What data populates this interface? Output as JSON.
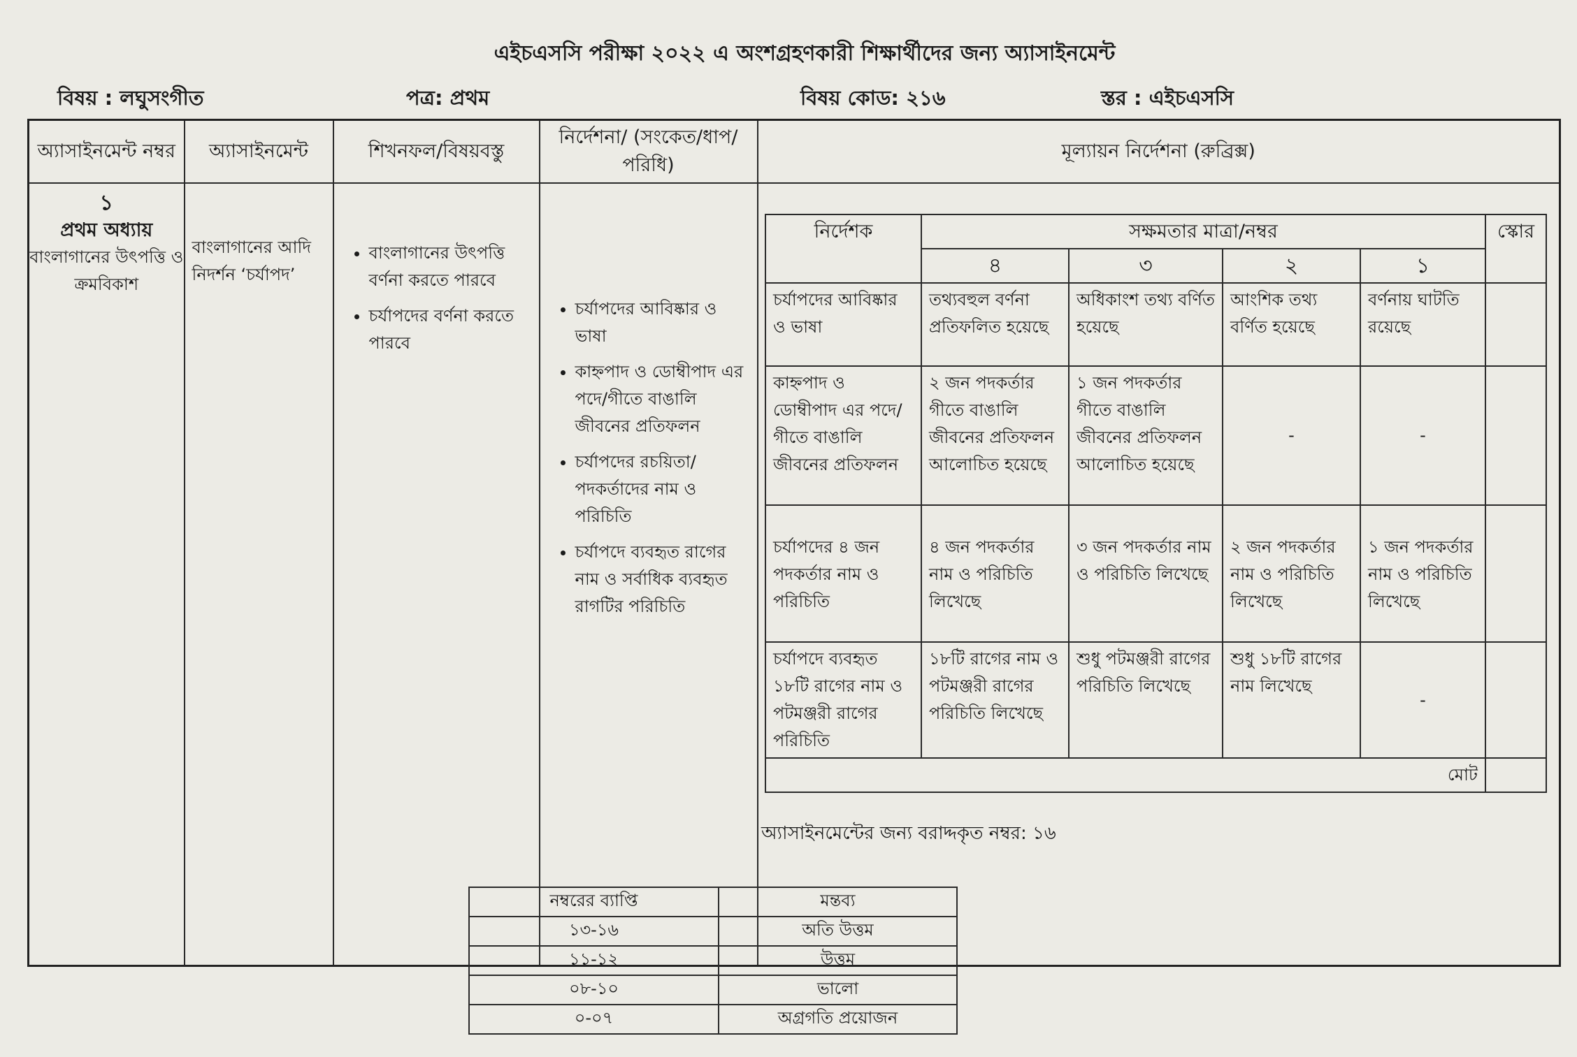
{
  "document": {
    "title": "এইচএসসি পরীক্ষা ২০২২ এ অংশগ্রহণকারী শিক্ষার্থীদের জন্য অ্যাসাইনমেন্ট",
    "subject": "বিষয় : লঘুসংগীত",
    "paper": "পত্র: প্রথম",
    "subject_code": "বিষয় কোড: ২১৬",
    "level": "স্তর : এইচএসসি"
  },
  "main_table": {
    "headers": [
      "অ্যাসাইনমেন্ট নম্বর",
      "অ্যাসাইনমেন্ট",
      "শিখনফল/বিষয়বস্তু",
      "নির্দেশনা/ (সংকেত/ধাপ/পরিধি)",
      "মূল্যায়ন নির্দেশনা (রুব্রিক্স)"
    ],
    "assignment_number": "১",
    "chapter": "প্রথম অধ্যায়",
    "chapter_topic": "বাংলাগানের উৎপত্তি ও ক্রমবিকাশ",
    "assignment": "বাংলাগানের আদি নিদর্শন ‘চর্যাপদ’",
    "learning_outcomes": [
      "বাংলাগানের উৎপত্তি বর্ণনা করতে পারবে",
      "চর্যাপদের বর্ণনা করতে পারবে"
    ],
    "instructions": [
      "চর্যাপদের আবিষ্কার ও ভাষা",
      "কাহ্নপাদ ও ডোম্বীপাদ এর পদে/গীতে বাঙালি জীবনের প্রতিফলন",
      "চর্যাপদের রচয়িতা/পদকর্তাদের নাম ও পরিচিতি",
      "চর্যাপদে ব্যবহৃত রাগের নাম ও সর্বাধিক ব্যবহৃত রাগটির পরিচিতি"
    ]
  },
  "rubric": {
    "indicator_header": "নির্দেশক",
    "competency_header": "সক্ষমতার মাত্রা/নম্বর",
    "score_header": "স্কোর",
    "levels": [
      "৪",
      "৩",
      "২",
      "১"
    ],
    "rows": [
      {
        "indicator": "চর্যাপদের আবিষ্কার ও ভাষা",
        "cells": [
          "তথ্যবহুল বর্ণনা প্রতিফলিত হয়েছে",
          "অধিকাংশ তথ্য বর্ণিত হয়েছে",
          "আংশিক তথ্য বর্ণিত হয়েছে",
          "বর্ণনায় ঘাটতি রয়েছে"
        ]
      },
      {
        "indicator": "কাহ্নপাদ ও ডোম্বীপাদ এর পদে/গীতে বাঙালি জীবনের প্রতিফলন",
        "cells": [
          "২ জন পদকর্তার গীতে বাঙালি জীবনের প্রতিফলন আলোচিত হয়েছে",
          "১ জন পদকর্তার গীতে বাঙালি জীবনের প্রতিফলন আলোচিত হয়েছে",
          "-",
          "-"
        ]
      },
      {
        "indicator": "চর্যাপদের ৪ জন পদকর্তার নাম ও পরিচিতি",
        "cells": [
          "৪ জন পদকর্তার নাম ও পরিচিতি লিখেছে",
          "৩ জন পদকর্তার নাম ও পরিচিতি লিখেছে",
          "২ জন পদকর্তার নাম ও পরিচিতি লিখেছে",
          "১ জন পদকর্তার নাম ও পরিচিতি লিখেছে"
        ]
      },
      {
        "indicator": "চর্যাপদে ব্যবহৃত ১৮টি রাগের নাম ও পটমঞ্জরী রাগের পরিচিতি",
        "cells": [
          "১৮টি রাগের নাম ও পটমঞ্জরী রাগের পরিচিতি লিখেছে",
          "শুধু পটমঞ্জরী রাগের পরিচিতি লিখেছে",
          "শুধু ১৮টি রাগের নাম লিখেছে",
          "-"
        ]
      }
    ],
    "total_label": "মোট"
  },
  "allotted_marks": "অ্যাসাইনমেন্টের জন্য বরাদ্দকৃত নম্বর: ১৬",
  "grading_scale": {
    "headers": [
      "নম্বরের ব্যাপ্তি",
      "মন্তব্য"
    ],
    "rows": [
      [
        "১৩-১৬",
        "অতি উত্তম"
      ],
      [
        "১১-১২",
        "উত্তম"
      ],
      [
        "০৮-১০",
        "ভালো"
      ],
      [
        "০-০৭",
        "অগ্রগতি প্রয়োজন"
      ]
    ]
  }
}
